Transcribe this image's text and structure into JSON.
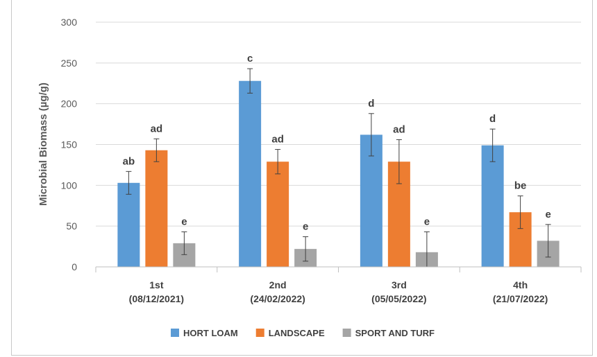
{
  "chart_data": {
    "type": "bar",
    "title": "",
    "xlabel": "",
    "ylabel": "Microbial Biomass (µg/g)",
    "ylim": [
      0,
      300
    ],
    "yticks": [
      0,
      50,
      100,
      150,
      200,
      250,
      300
    ],
    "grid": true,
    "legend_position": "bottom",
    "categories": [
      [
        "1st",
        "(08/12/2021)"
      ],
      [
        "2nd",
        "(24/02/2022)"
      ],
      [
        "3rd",
        "(05/05/2022)"
      ],
      [
        "4th",
        "(21/07/2022)"
      ]
    ],
    "series": [
      {
        "name": "HORT LOAM",
        "color": "#5b9bd5",
        "values": [
          103,
          228,
          162,
          149
        ],
        "errors": [
          14,
          15,
          26,
          20
        ],
        "labels": [
          "ab",
          "c",
          "d",
          "d"
        ]
      },
      {
        "name": "LANDSCAPE",
        "color": "#ed7d31",
        "values": [
          143,
          129,
          129,
          67
        ],
        "errors": [
          14,
          15,
          27,
          20
        ],
        "labels": [
          "ad",
          "ad",
          "ad",
          "be"
        ]
      },
      {
        "name": "SPORT AND TURF",
        "color": "#a5a5a5",
        "values": [
          29,
          22,
          18,
          32
        ],
        "errors": [
          14,
          15,
          25,
          20
        ],
        "labels": [
          "e",
          "e",
          "e",
          "e"
        ]
      }
    ]
  }
}
